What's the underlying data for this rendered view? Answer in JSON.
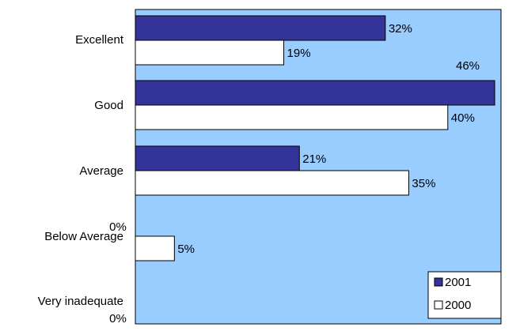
{
  "chart_data": {
    "type": "bar",
    "orientation": "horizontal",
    "categories": [
      "Excellent",
      "Good",
      "Average",
      "Below Average",
      "Very inadequate"
    ],
    "series": [
      {
        "name": "2001",
        "values": [
          32,
          46,
          21,
          0,
          0
        ],
        "labels": [
          "32%",
          "46%",
          "21%",
          "0%",
          "0%"
        ]
      },
      {
        "name": "2000",
        "values": [
          19,
          40,
          35,
          5,
          0
        ],
        "labels": [
          "19%",
          "40%",
          "35%",
          "5%",
          ""
        ]
      }
    ],
    "xlim": [
      0,
      46
    ],
    "grid": false,
    "legend_position": "bottom-right",
    "colors": {
      "plot_background": "#99ccff",
      "plot_border": "#000000",
      "series_2001": "#333399",
      "series_2000": "#ffffff"
    }
  }
}
